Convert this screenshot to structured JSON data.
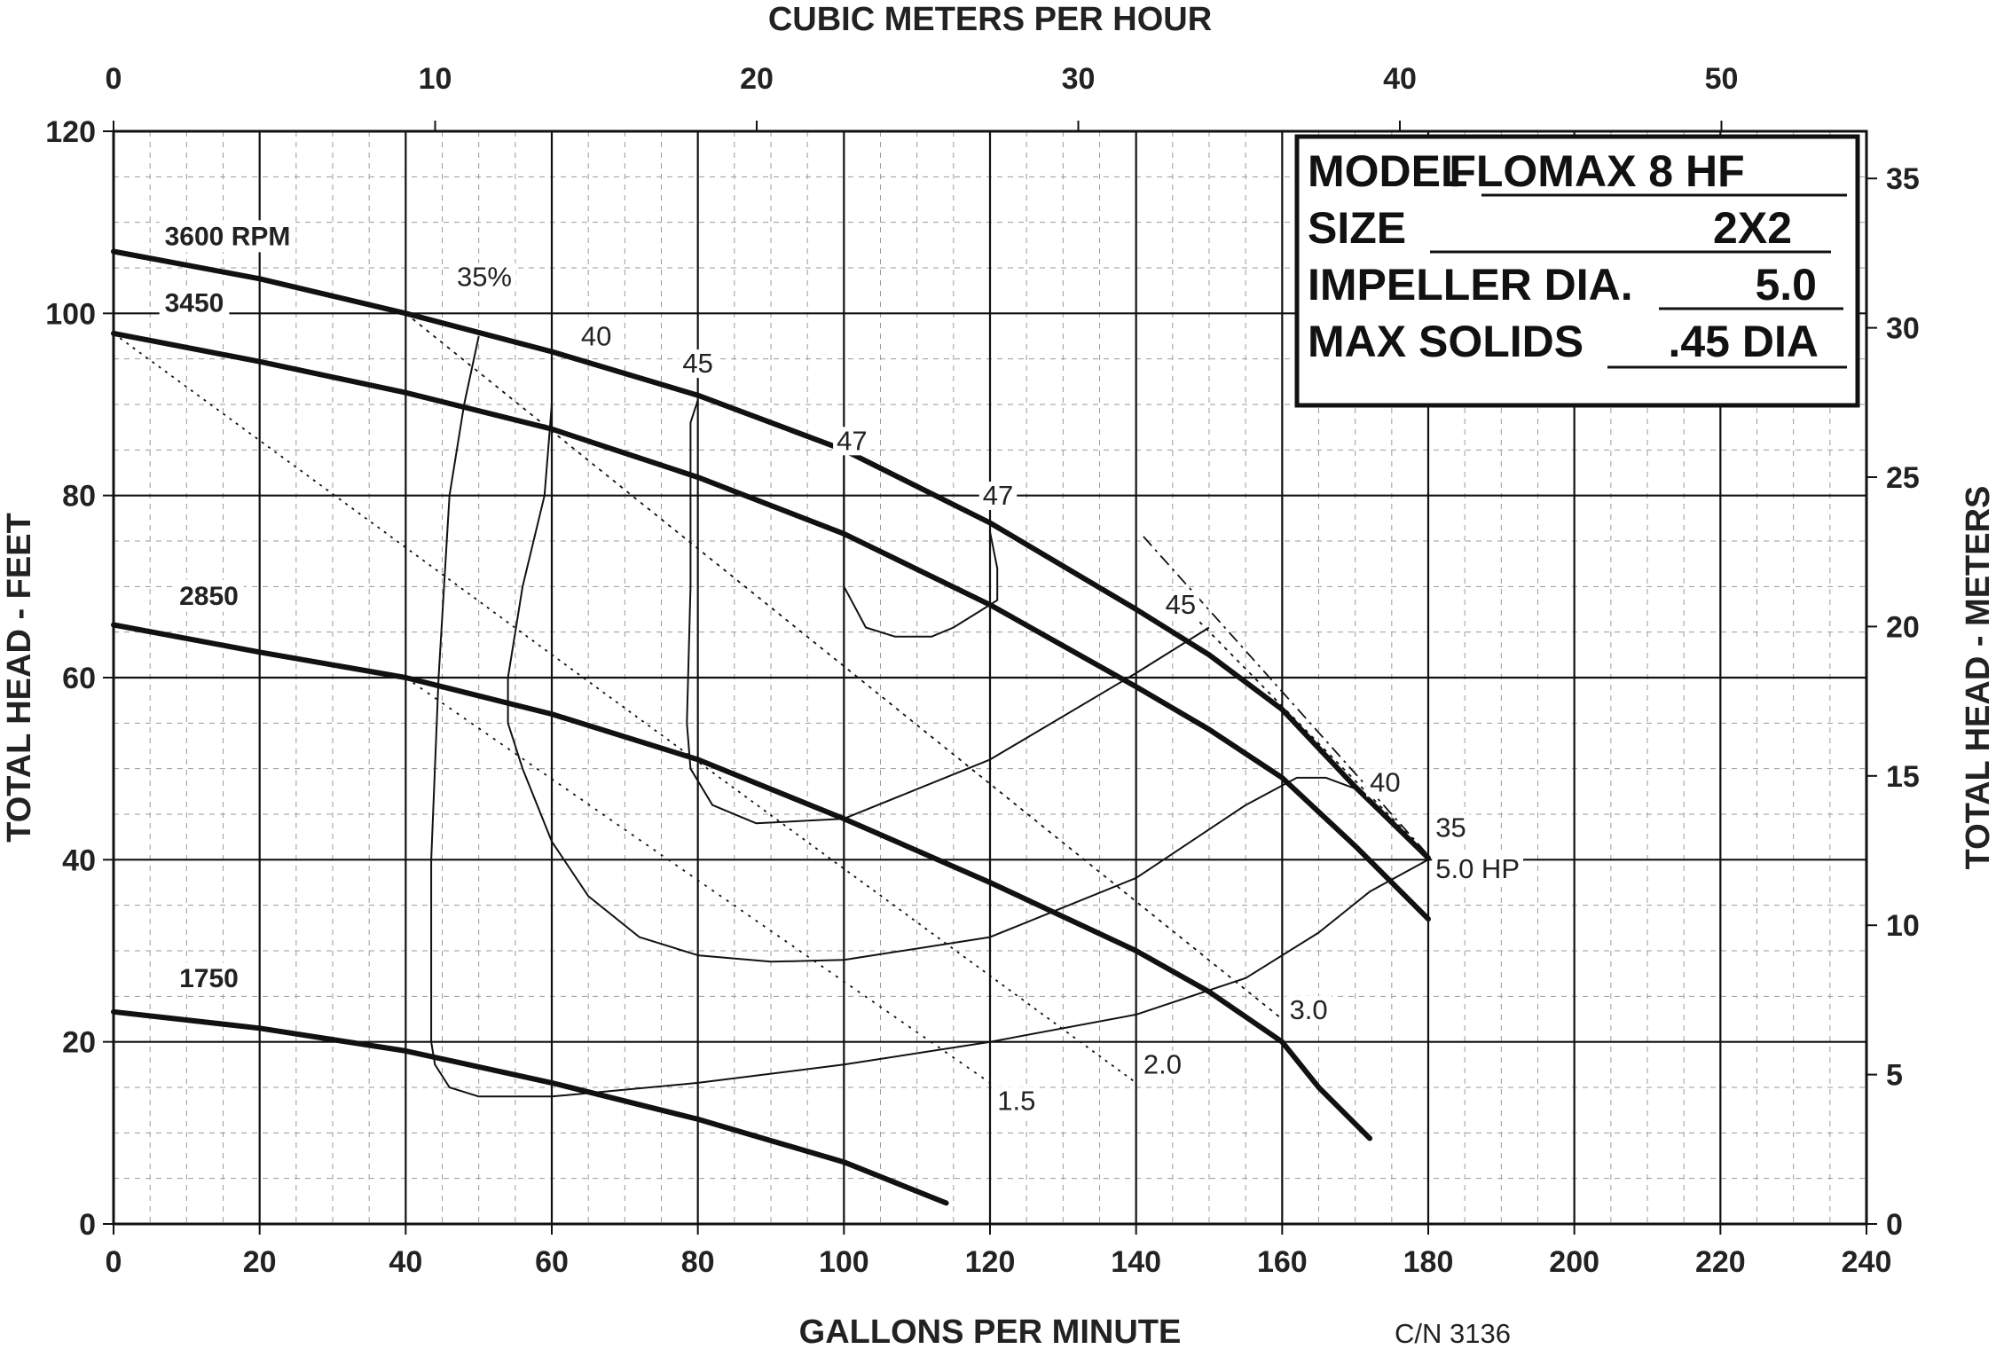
{
  "chart_data": {
    "type": "line",
    "x_axis": {
      "label": "GALLONS PER MINUTE",
      "range": [
        0,
        240
      ],
      "ticks": [
        0,
        20,
        40,
        60,
        80,
        100,
        120,
        140,
        160,
        180,
        200,
        220,
        240
      ]
    },
    "x2_axis": {
      "label": "CUBIC METERS PER HOUR",
      "range": [
        0,
        54.51
      ],
      "ticks": [
        0,
        10,
        20,
        30,
        40,
        50
      ]
    },
    "y_axis": {
      "label": "TOTAL HEAD - FEET",
      "range": [
        0,
        120
      ],
      "ticks": [
        0,
        20,
        40,
        60,
        80,
        100,
        120
      ]
    },
    "y2_axis": {
      "label": "TOTAL HEAD - METERS",
      "range": [
        0,
        36.58
      ],
      "ticks": [
        0,
        5,
        10,
        15,
        20,
        25,
        30,
        35
      ]
    },
    "grid": true,
    "minor_grid": true,
    "info_box": {
      "position": "top-right",
      "rows": [
        {
          "label": "MODEL",
          "value": "FLOMAX 8 HF"
        },
        {
          "label": "SIZE",
          "value": "2X2"
        },
        {
          "label": "IMPELLER DIA.",
          "value": "5.0"
        },
        {
          "label": "MAX SOLIDS",
          "value": ".45 DIA"
        }
      ]
    },
    "footnote": "C/N 3136",
    "rpm_curves": [
      {
        "name": "3600 RPM",
        "label_at": [
          7,
          107.5
        ],
        "points": [
          [
            0,
            106.8
          ],
          [
            20,
            103.8
          ],
          [
            40,
            100
          ],
          [
            60,
            95.8
          ],
          [
            80,
            91
          ],
          [
            100,
            85
          ],
          [
            120,
            77
          ],
          [
            140,
            67.5
          ],
          [
            150,
            62.5
          ],
          [
            160,
            56.5
          ],
          [
            170,
            48
          ],
          [
            180,
            40.2
          ]
        ]
      },
      {
        "name": "3450",
        "label_at": [
          7,
          100.2
        ],
        "points": [
          [
            0,
            97.8
          ],
          [
            20,
            94.7
          ],
          [
            40,
            91.3
          ],
          [
            60,
            87.3
          ],
          [
            80,
            82
          ],
          [
            100,
            75.8
          ],
          [
            120,
            68
          ],
          [
            140,
            59
          ],
          [
            150,
            54.3
          ],
          [
            160,
            49
          ],
          [
            170,
            41.5
          ],
          [
            180,
            33.5
          ]
        ]
      },
      {
        "name": "2850",
        "label_at": [
          9,
          68
        ],
        "points": [
          [
            0,
            65.8
          ],
          [
            20,
            62.8
          ],
          [
            40,
            60
          ],
          [
            60,
            56
          ],
          [
            80,
            51
          ],
          [
            100,
            44.5
          ],
          [
            120,
            37.5
          ],
          [
            140,
            30
          ],
          [
            150,
            25.5
          ],
          [
            160,
            20
          ],
          [
            165,
            15
          ],
          [
            172,
            9.4
          ]
        ]
      },
      {
        "name": "1750",
        "label_at": [
          9,
          26
        ],
        "points": [
          [
            0,
            23.3
          ],
          [
            20,
            21.5
          ],
          [
            40,
            19
          ],
          [
            60,
            15.5
          ],
          [
            80,
            11.5
          ],
          [
            100,
            6.8
          ],
          [
            114,
            2.3
          ]
        ]
      }
    ],
    "efficiency_curves": [
      {
        "name": "35%",
        "label_at": [
          47,
          103
        ],
        "label_anchor": "start",
        "points": [
          [
            50,
            97.5
          ],
          [
            48,
            90
          ],
          [
            46,
            80
          ],
          [
            44.5,
            60
          ],
          [
            43.5,
            40
          ],
          [
            43.5,
            20
          ],
          [
            44,
            17.5
          ],
          [
            46,
            15
          ],
          [
            50,
            14
          ],
          [
            60,
            14
          ],
          [
            80,
            15.5
          ],
          [
            100,
            17.5
          ],
          [
            120,
            20
          ],
          [
            140,
            23
          ],
          [
            155,
            27
          ],
          [
            165,
            32
          ],
          [
            172,
            36.5
          ],
          [
            180,
            40
          ]
        ]
      },
      {
        "name": "40",
        "label_at": [
          64,
          96.5
        ],
        "label_anchor": "start",
        "points": [
          [
            60,
            96
          ],
          [
            60,
            90
          ],
          [
            59,
            80
          ],
          [
            56,
            70
          ],
          [
            54,
            60
          ],
          [
            54,
            55
          ],
          [
            56,
            50
          ],
          [
            60,
            42
          ],
          [
            65,
            36
          ],
          [
            72,
            31.5
          ],
          [
            80,
            29.5
          ],
          [
            90,
            28.8
          ],
          [
            100,
            29
          ],
          [
            120,
            31.5
          ],
          [
            140,
            38
          ],
          [
            155,
            46
          ],
          [
            162,
            49
          ],
          [
            166,
            49
          ],
          [
            171,
            47.5
          ]
        ]
      },
      {
        "name": "45",
        "label_at": [
          80,
          93.5
        ],
        "label_anchor": "middle",
        "points": [
          [
            80,
            90.5
          ],
          [
            79,
            88
          ],
          [
            79,
            70
          ],
          [
            78.5,
            55
          ],
          [
            79,
            50
          ],
          [
            82,
            46
          ],
          [
            88,
            44
          ],
          [
            100,
            44.5
          ],
          [
            120,
            51
          ],
          [
            140,
            60.5
          ],
          [
            150,
            65.5
          ]
        ]
      },
      {
        "name": "47",
        "label_at": [
          99,
          85
        ],
        "label_anchor": "start",
        "points": [
          [
            100,
            85
          ],
          [
            100,
            70
          ],
          [
            101,
            68.5
          ],
          [
            103,
            65.5
          ],
          [
            107,
            64.5
          ],
          [
            112,
            64.5
          ],
          [
            115,
            65.5
          ],
          [
            119,
            67.5
          ],
          [
            121,
            68.5
          ],
          [
            121,
            72
          ],
          [
            120,
            76
          ]
        ]
      },
      {
        "name": "47",
        "label_at": [
          119,
          79
        ],
        "label_anchor": "start",
        "points": []
      },
      {
        "name": "45",
        "label_at": [
          144,
          67
        ],
        "label_anchor": "start",
        "points": []
      },
      {
        "name": "40",
        "label_at": [
          172,
          47.5
        ],
        "label_anchor": "start",
        "points": []
      }
    ],
    "horsepower_lines": [
      {
        "name": "1.5",
        "label_at": [
          121,
          12.5
        ],
        "dash": "3 7",
        "points": [
          [
            40,
            60
          ],
          [
            120,
            15.5
          ]
        ]
      },
      {
        "name": "2.0",
        "label_at": [
          141,
          16.5
        ],
        "dash": "3 6",
        "points": [
          [
            0,
            97.8
          ],
          [
            140,
            15.5
          ]
        ]
      },
      {
        "name": "3.0",
        "label_at": [
          161,
          22.5
        ],
        "dash": "4 6",
        "points": [
          [
            40,
            100
          ],
          [
            160,
            22.5
          ]
        ]
      },
      {
        "name": "35",
        "label_at": [
          181,
          42.5
        ],
        "dash": "14 6 3 6",
        "points": [
          [
            141,
            75.5
          ],
          [
            180,
            40.5
          ]
        ]
      },
      {
        "name": "5.0 HP",
        "label_at": [
          181,
          38
        ],
        "dash": "4 6",
        "points": [
          [
            147,
            67.5
          ],
          [
            180,
            40.5
          ]
        ]
      }
    ]
  }
}
